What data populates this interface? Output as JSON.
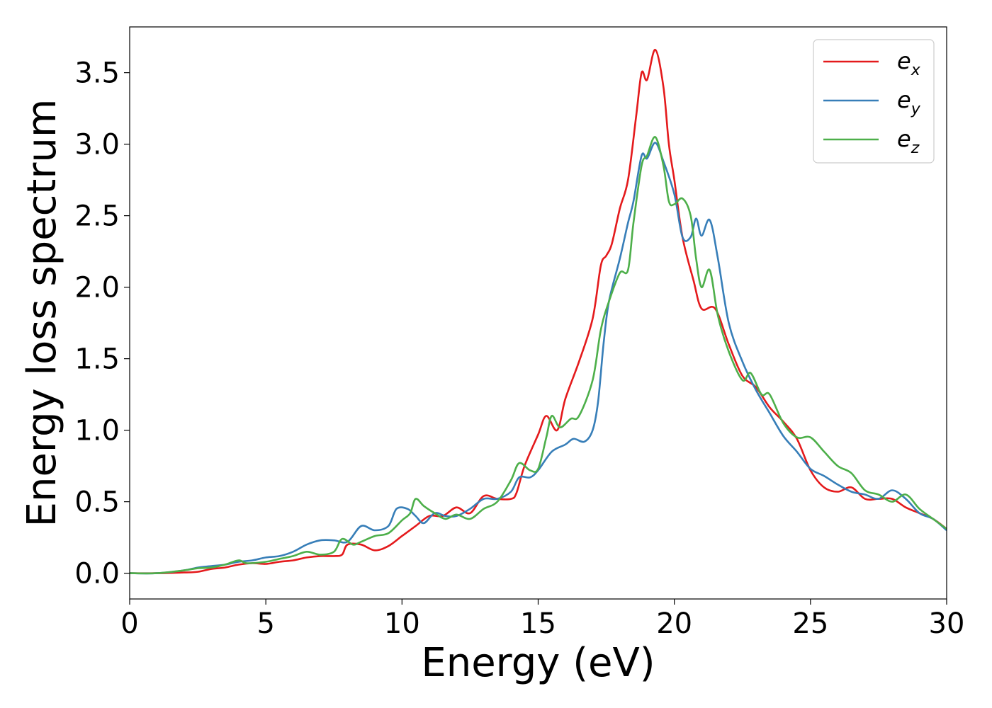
{
  "chart_data": {
    "type": "line",
    "title": "",
    "xlabel": "Energy (eV)",
    "ylabel": "Energy loss spectrum",
    "xlim": [
      0,
      30
    ],
    "ylim": [
      -0.18,
      3.82
    ],
    "xticks": [
      "0",
      "5",
      "10",
      "15",
      "20",
      "25",
      "30"
    ],
    "yticks": [
      "0.0",
      "0.5",
      "1.0",
      "1.5",
      "2.0",
      "2.5",
      "3.0",
      "3.5"
    ],
    "grid": false,
    "legend_position": "top-right",
    "series": [
      {
        "name": "e",
        "sub": "x",
        "color": "#e41a1c",
        "points": [
          [
            0,
            0
          ],
          [
            1,
            0.0
          ],
          [
            2,
            0.005
          ],
          [
            2.5,
            0.01
          ],
          [
            3,
            0.03
          ],
          [
            3.5,
            0.04
          ],
          [
            4,
            0.06
          ],
          [
            4.5,
            0.07
          ],
          [
            5,
            0.065
          ],
          [
            5.5,
            0.08
          ],
          [
            6,
            0.09
          ],
          [
            6.5,
            0.11
          ],
          [
            7,
            0.12
          ],
          [
            7.5,
            0.12
          ],
          [
            7.8,
            0.13
          ],
          [
            8,
            0.2
          ],
          [
            8.5,
            0.2
          ],
          [
            9,
            0.16
          ],
          [
            9.5,
            0.19
          ],
          [
            10,
            0.26
          ],
          [
            10.5,
            0.33
          ],
          [
            11,
            0.4
          ],
          [
            11.5,
            0.4
          ],
          [
            12,
            0.46
          ],
          [
            12.5,
            0.42
          ],
          [
            13,
            0.54
          ],
          [
            13.5,
            0.52
          ],
          [
            14,
            0.52
          ],
          [
            14.2,
            0.56
          ],
          [
            14.5,
            0.75
          ],
          [
            15,
            0.97
          ],
          [
            15.3,
            1.1
          ],
          [
            15.7,
            1.0
          ],
          [
            16,
            1.22
          ],
          [
            16.5,
            1.48
          ],
          [
            17,
            1.78
          ],
          [
            17.3,
            2.15
          ],
          [
            17.5,
            2.22
          ],
          [
            17.7,
            2.3
          ],
          [
            18,
            2.55
          ],
          [
            18.3,
            2.75
          ],
          [
            18.6,
            3.2
          ],
          [
            18.8,
            3.5
          ],
          [
            19.0,
            3.45
          ],
          [
            19.3,
            3.66
          ],
          [
            19.6,
            3.4
          ],
          [
            19.8,
            3.0
          ],
          [
            20,
            2.75
          ],
          [
            20.3,
            2.35
          ],
          [
            20.7,
            2.05
          ],
          [
            21,
            1.85
          ],
          [
            21.5,
            1.85
          ],
          [
            22,
            1.6
          ],
          [
            22.5,
            1.38
          ],
          [
            23,
            1.3
          ],
          [
            23.5,
            1.16
          ],
          [
            24,
            1.06
          ],
          [
            24.5,
            0.94
          ],
          [
            25,
            0.72
          ],
          [
            25.5,
            0.6
          ],
          [
            26,
            0.57
          ],
          [
            26.5,
            0.6
          ],
          [
            27,
            0.52
          ],
          [
            27.5,
            0.52
          ],
          [
            28,
            0.52
          ],
          [
            28.5,
            0.46
          ],
          [
            29,
            0.42
          ],
          [
            29.5,
            0.38
          ],
          [
            30,
            0.31
          ]
        ]
      },
      {
        "name": "e",
        "sub": "y",
        "color": "#377eb8",
        "points": [
          [
            0,
            0
          ],
          [
            1,
            0.0
          ],
          [
            2,
            0.02
          ],
          [
            2.5,
            0.04
          ],
          [
            3,
            0.05
          ],
          [
            3.5,
            0.06
          ],
          [
            4,
            0.08
          ],
          [
            4.5,
            0.09
          ],
          [
            5,
            0.11
          ],
          [
            5.5,
            0.12
          ],
          [
            6,
            0.15
          ],
          [
            6.5,
            0.2
          ],
          [
            7,
            0.23
          ],
          [
            7.5,
            0.23
          ],
          [
            8,
            0.22
          ],
          [
            8.5,
            0.33
          ],
          [
            9,
            0.3
          ],
          [
            9.5,
            0.33
          ],
          [
            9.8,
            0.45
          ],
          [
            10.2,
            0.45
          ],
          [
            10.5,
            0.4
          ],
          [
            10.8,
            0.35
          ],
          [
            11.2,
            0.42
          ],
          [
            11.6,
            0.4
          ],
          [
            12,
            0.4
          ],
          [
            12.5,
            0.45
          ],
          [
            13,
            0.52
          ],
          [
            13.5,
            0.52
          ],
          [
            14,
            0.57
          ],
          [
            14.3,
            0.67
          ],
          [
            14.7,
            0.67
          ],
          [
            15,
            0.72
          ],
          [
            15.5,
            0.85
          ],
          [
            16,
            0.9
          ],
          [
            16.3,
            0.94
          ],
          [
            16.7,
            0.92
          ],
          [
            17,
            1.0
          ],
          [
            17.2,
            1.2
          ],
          [
            17.4,
            1.6
          ],
          [
            17.6,
            1.9
          ],
          [
            18,
            2.2
          ],
          [
            18.3,
            2.45
          ],
          [
            18.5,
            2.6
          ],
          [
            18.8,
            2.92
          ],
          [
            19.0,
            2.9
          ],
          [
            19.3,
            3.01
          ],
          [
            19.6,
            2.88
          ],
          [
            20,
            2.65
          ],
          [
            20.3,
            2.35
          ],
          [
            20.6,
            2.35
          ],
          [
            20.8,
            2.48
          ],
          [
            21,
            2.36
          ],
          [
            21.3,
            2.47
          ],
          [
            21.6,
            2.2
          ],
          [
            22,
            1.75
          ],
          [
            22.5,
            1.48
          ],
          [
            23,
            1.28
          ],
          [
            23.5,
            1.12
          ],
          [
            24,
            0.96
          ],
          [
            24.5,
            0.85
          ],
          [
            25,
            0.73
          ],
          [
            25.5,
            0.68
          ],
          [
            26,
            0.62
          ],
          [
            26.5,
            0.57
          ],
          [
            27,
            0.55
          ],
          [
            27.5,
            0.52
          ],
          [
            28,
            0.58
          ],
          [
            28.5,
            0.52
          ],
          [
            29,
            0.42
          ],
          [
            29.5,
            0.38
          ],
          [
            30,
            0.3
          ]
        ]
      },
      {
        "name": "e",
        "sub": "z",
        "color": "#4daf4a",
        "points": [
          [
            0,
            0
          ],
          [
            1,
            0.0
          ],
          [
            2,
            0.02
          ],
          [
            2.5,
            0.035
          ],
          [
            3,
            0.04
          ],
          [
            3.5,
            0.06
          ],
          [
            4,
            0.09
          ],
          [
            4.3,
            0.07
          ],
          [
            5,
            0.08
          ],
          [
            5.5,
            0.1
          ],
          [
            6,
            0.12
          ],
          [
            6.5,
            0.15
          ],
          [
            7,
            0.13
          ],
          [
            7.5,
            0.15
          ],
          [
            7.8,
            0.24
          ],
          [
            8.2,
            0.2
          ],
          [
            8.5,
            0.22
          ],
          [
            9,
            0.26
          ],
          [
            9.5,
            0.28
          ],
          [
            10,
            0.37
          ],
          [
            10.3,
            0.42
          ],
          [
            10.5,
            0.52
          ],
          [
            10.8,
            0.47
          ],
          [
            11.2,
            0.42
          ],
          [
            11.6,
            0.38
          ],
          [
            12,
            0.41
          ],
          [
            12.5,
            0.38
          ],
          [
            13,
            0.45
          ],
          [
            13.5,
            0.5
          ],
          [
            14,
            0.65
          ],
          [
            14.3,
            0.77
          ],
          [
            14.7,
            0.72
          ],
          [
            15,
            0.73
          ],
          [
            15.3,
            0.95
          ],
          [
            15.5,
            1.1
          ],
          [
            15.8,
            1.02
          ],
          [
            16.2,
            1.08
          ],
          [
            16.5,
            1.1
          ],
          [
            17,
            1.35
          ],
          [
            17.3,
            1.7
          ],
          [
            17.6,
            1.9
          ],
          [
            18,
            2.1
          ],
          [
            18.3,
            2.12
          ],
          [
            18.5,
            2.45
          ],
          [
            18.8,
            2.85
          ],
          [
            19.0,
            2.92
          ],
          [
            19.3,
            3.05
          ],
          [
            19.6,
            2.85
          ],
          [
            19.8,
            2.6
          ],
          [
            20,
            2.58
          ],
          [
            20.3,
            2.62
          ],
          [
            20.6,
            2.5
          ],
          [
            20.8,
            2.2
          ],
          [
            21,
            2.0
          ],
          [
            21.3,
            2.12
          ],
          [
            21.6,
            1.8
          ],
          [
            22,
            1.55
          ],
          [
            22.5,
            1.35
          ],
          [
            22.8,
            1.4
          ],
          [
            23.2,
            1.25
          ],
          [
            23.5,
            1.25
          ],
          [
            24,
            1.05
          ],
          [
            24.5,
            0.95
          ],
          [
            25,
            0.95
          ],
          [
            25.5,
            0.85
          ],
          [
            26,
            0.75
          ],
          [
            26.5,
            0.7
          ],
          [
            27,
            0.58
          ],
          [
            27.5,
            0.55
          ],
          [
            28,
            0.5
          ],
          [
            28.5,
            0.55
          ],
          [
            29,
            0.45
          ],
          [
            29.5,
            0.38
          ],
          [
            30,
            0.31
          ]
        ]
      }
    ]
  }
}
